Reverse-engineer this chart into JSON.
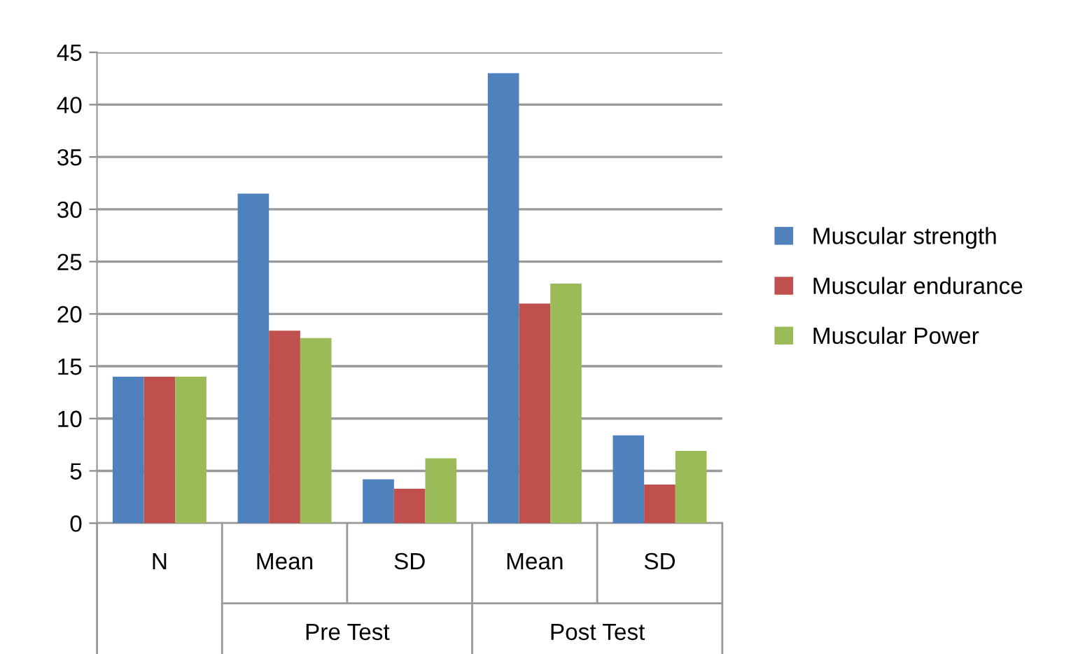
{
  "chart_data": {
    "type": "bar",
    "categories": [
      "N",
      "Mean",
      "SD",
      "Mean",
      "SD"
    ],
    "series": [
      {
        "name": "Muscular strength",
        "color": "#4f81bd",
        "values": [
          14,
          31.5,
          4.2,
          43,
          8.4
        ]
      },
      {
        "name": "Muscular endurance",
        "color": "#c0504d",
        "values": [
          14,
          18.4,
          3.3,
          21,
          3.7
        ]
      },
      {
        "name": "Muscular Power",
        "color": "#9bbb59",
        "values": [
          14,
          17.7,
          6.2,
          22.9,
          6.9
        ]
      }
    ],
    "annotations": [
      "Pre Test",
      "Post Test"
    ],
    "ylim": [
      0,
      45
    ],
    "yticks": [
      0,
      5,
      10,
      15,
      20,
      25,
      30,
      35,
      40,
      45
    ],
    "grid": "y",
    "legend": "right"
  }
}
